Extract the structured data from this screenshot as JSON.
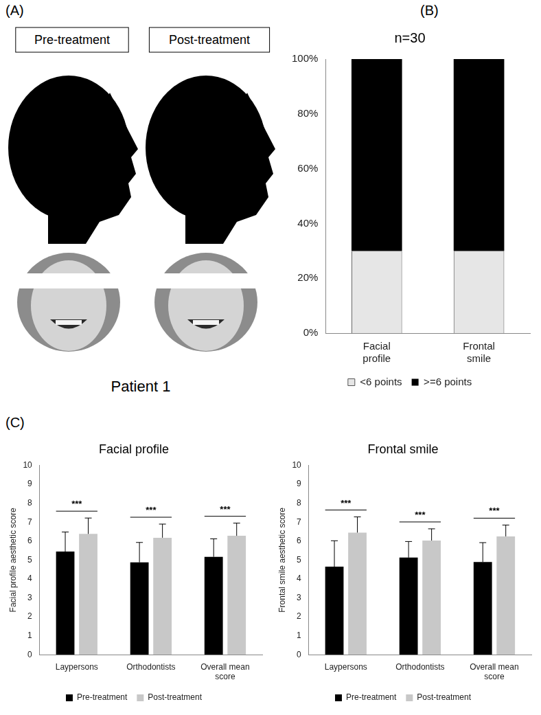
{
  "panel_labels": [
    "(A)",
    "(B)",
    "(C)"
  ],
  "panel_a": {
    "headers": [
      "Pre-treatment",
      "Post-treatment"
    ],
    "caption": "Patient 1"
  },
  "chart_data": [
    {
      "type": "bar",
      "title": "n=30",
      "categories": [
        "Facial profile",
        "Frontal smile"
      ],
      "series": [
        {
          "name": "<6 points",
          "color": "#e6e6e6",
          "values": [
            30,
            30
          ]
        },
        {
          "name": ">=6 points",
          "color": "#000000",
          "values": [
            70,
            70
          ]
        }
      ],
      "stacked": true,
      "ylim": [
        0,
        100
      ],
      "yticks": [
        {
          "value": 0,
          "label": "0%"
        },
        {
          "value": 20,
          "label": "20%"
        },
        {
          "value": 40,
          "label": "40%"
        },
        {
          "value": 60,
          "label": "60%"
        },
        {
          "value": 80,
          "label": "80%"
        },
        {
          "value": 100,
          "label": "100%"
        }
      ],
      "grid": false,
      "legend": "bottom"
    },
    {
      "type": "bar",
      "title": "Facial profile",
      "y_label": "Facial profile aesthetic score",
      "categories": [
        "Laypersons",
        "Orthodontists",
        "Overall mean score"
      ],
      "series": [
        {
          "name": "Pre-treatment",
          "color": "#000000",
          "values": [
            5.45,
            4.88,
            5.17
          ],
          "errors": [
            1.03,
            1.05,
            0.95
          ]
        },
        {
          "name": "Post-treatment",
          "color": "#c8c8c8",
          "values": [
            6.38,
            6.18,
            6.28
          ],
          "errors": [
            0.84,
            0.72,
            0.67
          ]
        }
      ],
      "significance": [
        "***",
        "***",
        "***"
      ],
      "ylim": [
        0,
        10
      ],
      "yticks": [
        0,
        1,
        2,
        3,
        4,
        5,
        6,
        7,
        8,
        9,
        10
      ],
      "grid": false,
      "legend": "bottom"
    },
    {
      "type": "bar",
      "title": "Frontal smile",
      "y_label": "Frontal smile aesthetic score",
      "categories": [
        "Laypersons",
        "Orthodontists",
        "Overall mean score"
      ],
      "series": [
        {
          "name": "Pre-treatment",
          "color": "#000000",
          "values": [
            4.65,
            5.13,
            4.9
          ],
          "errors": [
            1.37,
            0.85,
            1.02
          ]
        },
        {
          "name": "Post-treatment",
          "color": "#c8c8c8",
          "values": [
            6.45,
            6.03,
            6.25
          ],
          "errors": [
            0.83,
            0.62,
            0.6
          ]
        }
      ],
      "significance": [
        "***",
        "***",
        "***"
      ],
      "ylim": [
        0,
        10
      ],
      "yticks": [
        0,
        1,
        2,
        3,
        4,
        5,
        6,
        7,
        8,
        9,
        10
      ],
      "grid": false,
      "legend": "bottom"
    }
  ]
}
